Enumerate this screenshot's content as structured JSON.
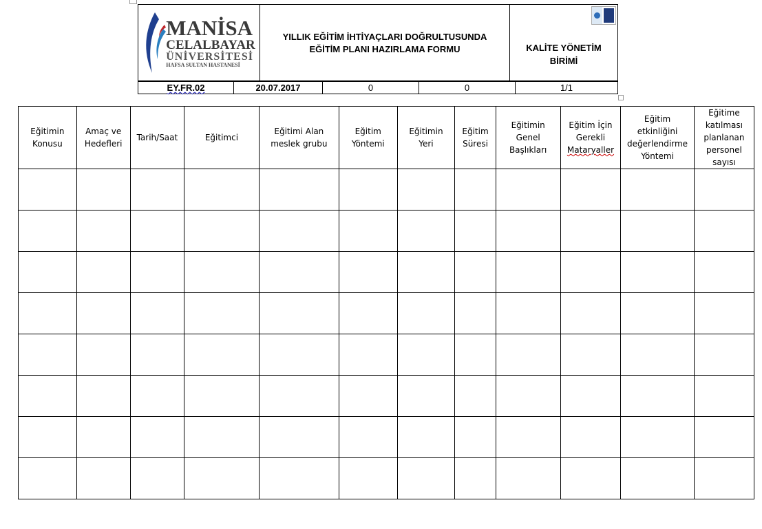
{
  "header": {
    "logo": {
      "line1": "MANİSA",
      "line2": "CELALBAYAR",
      "line3": "ÜNİVERSİTESİ",
      "line4": "HAFSA SULTAN HASTANESİ"
    },
    "title_line1": "YILLIK EĞİTİM İHTİYAÇLARI DOĞRULTUSUNDA",
    "title_line2": "EĞİTİM PLANI HAZIRLAMA FORMU",
    "unit_line1": "KALİTE YÖNETİM",
    "unit_line2": "BİRİMİ",
    "doc_code": "EY.FR.02",
    "date": "20.07.2017",
    "rev_no": "0",
    "rev_date": "0",
    "page": "1/1"
  },
  "table": {
    "columns": [
      [
        "Eğitimin",
        "Konusu"
      ],
      [
        "Amaç ve",
        "Hedefleri"
      ],
      [
        "Tarih/Saat"
      ],
      [
        "Eğitimci"
      ],
      [
        "Eğitimi Alan",
        "meslek grubu"
      ],
      [
        "Eğitim",
        "Yöntemi"
      ],
      [
        "Eğitimin",
        "Yeri"
      ],
      [
        "Eğitim",
        "Süresi"
      ],
      [
        "Eğitimin",
        "Genel",
        "Başlıkları"
      ],
      [
        "Eğitim İçin",
        "Gerekli",
        "Mataryaller"
      ],
      [
        "Eğitim",
        "etkinliğini",
        "değerlendirme",
        "Yöntemi"
      ],
      [
        "Eğitime",
        "katılması",
        "planlanan",
        "personel",
        "sayısı"
      ]
    ],
    "empty_rows": 8
  }
}
